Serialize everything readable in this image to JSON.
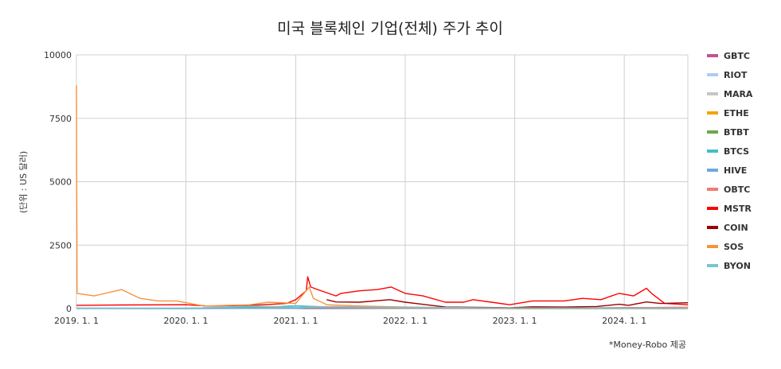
{
  "chart_data": {
    "type": "line",
    "title": "미국 블록체인 기업(전체) 주가 추이",
    "ylabel": "(단위 : US 달러)",
    "xlabel": "",
    "source": "*Money-Robo 제공",
    "x_range": [
      "2019-01-01",
      "2024-07-31"
    ],
    "ylim": [
      0,
      10000
    ],
    "y_ticks": [
      "0",
      "2500",
      "5000",
      "7500",
      "10000"
    ],
    "x_ticks": [
      {
        "date": "2019-01-01",
        "label": "2019. 1. 1"
      },
      {
        "date": "2020-01-01",
        "label": "2020. 1. 1"
      },
      {
        "date": "2021-01-01",
        "label": "2021. 1. 1"
      },
      {
        "date": "2022-01-01",
        "label": "2022. 1. 1"
      },
      {
        "date": "2023-01-01",
        "label": "2023. 1. 1"
      },
      {
        "date": "2024-01-01",
        "label": "2024. 1. 1"
      }
    ],
    "grid": true,
    "legend_position": "right",
    "series": [
      {
        "name": "GBTC",
        "color": "#c2538f",
        "points": [
          [
            "2019-01-01",
            5
          ],
          [
            "2020-01-01",
            9
          ],
          [
            "2021-01-01",
            35
          ],
          [
            "2021-02-15",
            50
          ],
          [
            "2022-01-01",
            30
          ],
          [
            "2023-01-01",
            8
          ],
          [
            "2024-01-01",
            38
          ],
          [
            "2024-07-31",
            50
          ]
        ]
      },
      {
        "name": "RIOT",
        "color": "#aecbf5",
        "points": [
          [
            "2019-01-01",
            2
          ],
          [
            "2020-01-01",
            1
          ],
          [
            "2021-01-01",
            18
          ],
          [
            "2021-02-15",
            70
          ],
          [
            "2022-01-01",
            20
          ],
          [
            "2023-01-01",
            4
          ],
          [
            "2024-01-01",
            15
          ],
          [
            "2024-07-31",
            9
          ]
        ]
      },
      {
        "name": "MARA",
        "color": "#c6c6c6",
        "points": [
          [
            "2019-01-01",
            4
          ],
          [
            "2020-01-01",
            1
          ],
          [
            "2021-01-01",
            12
          ],
          [
            "2021-02-15",
            50
          ],
          [
            "2022-01-01",
            35
          ],
          [
            "2023-01-01",
            4
          ],
          [
            "2024-01-01",
            24
          ],
          [
            "2024-07-31",
            20
          ]
        ]
      },
      {
        "name": "ETHE",
        "color": "#f4a300",
        "points": [
          [
            "2019-01-01",
            10
          ],
          [
            "2020-01-01",
            8
          ],
          [
            "2021-01-01",
            40
          ],
          [
            "2021-05-01",
            60
          ],
          [
            "2022-01-01",
            30
          ],
          [
            "2023-01-01",
            6
          ],
          [
            "2024-01-01",
            20
          ],
          [
            "2024-07-31",
            25
          ]
        ]
      },
      {
        "name": "BTBT",
        "color": "#6aa84f",
        "points": [
          [
            "2019-01-01",
            2
          ],
          [
            "2020-01-01",
            1
          ],
          [
            "2021-01-01",
            10
          ],
          [
            "2021-02-15",
            30
          ],
          [
            "2022-01-01",
            6
          ],
          [
            "2023-01-01",
            1
          ],
          [
            "2024-01-01",
            3
          ],
          [
            "2024-07-31",
            3
          ]
        ]
      },
      {
        "name": "BTCS",
        "color": "#46bdc6",
        "points": [
          [
            "2019-01-01",
            20
          ],
          [
            "2020-01-01",
            15
          ],
          [
            "2020-11-01",
            80
          ],
          [
            "2021-01-01",
            110
          ],
          [
            "2021-05-01",
            60
          ],
          [
            "2022-01-01",
            20
          ],
          [
            "2023-01-01",
            3
          ],
          [
            "2024-01-01",
            3
          ],
          [
            "2024-07-31",
            2
          ]
        ]
      },
      {
        "name": "HIVE",
        "color": "#6fa8dc",
        "points": [
          [
            "2019-01-01",
            5
          ],
          [
            "2020-01-01",
            3
          ],
          [
            "2021-01-01",
            15
          ],
          [
            "2021-02-15",
            20
          ],
          [
            "2022-01-01",
            12
          ],
          [
            "2023-01-01",
            3
          ],
          [
            "2024-01-01",
            4
          ],
          [
            "2024-07-31",
            4
          ]
        ]
      },
      {
        "name": "OBTC",
        "color": "#f07b72",
        "points": [
          [
            "2021-02-01",
            40
          ],
          [
            "2021-05-01",
            40
          ],
          [
            "2022-01-01",
            30
          ],
          [
            "2023-01-01",
            10
          ],
          [
            "2024-01-01",
            35
          ],
          [
            "2024-07-31",
            50
          ]
        ]
      },
      {
        "name": "MSTR",
        "color": "#ff0000",
        "points": [
          [
            "2019-01-01",
            130
          ],
          [
            "2019-06-01",
            140
          ],
          [
            "2020-01-01",
            150
          ],
          [
            "2020-03-15",
            100
          ],
          [
            "2020-08-01",
            130
          ],
          [
            "2020-10-15",
            170
          ],
          [
            "2020-12-01",
            200
          ],
          [
            "2021-01-01",
            350
          ],
          [
            "2021-02-05",
            700
          ],
          [
            "2021-02-10",
            1250
          ],
          [
            "2021-02-20",
            850
          ],
          [
            "2021-03-15",
            750
          ],
          [
            "2021-05-15",
            500
          ],
          [
            "2021-06-01",
            600
          ],
          [
            "2021-08-01",
            700
          ],
          [
            "2021-10-01",
            750
          ],
          [
            "2021-11-15",
            850
          ],
          [
            "2022-01-01",
            600
          ],
          [
            "2022-03-01",
            500
          ],
          [
            "2022-05-15",
            250
          ],
          [
            "2022-07-15",
            250
          ],
          [
            "2022-08-15",
            350
          ],
          [
            "2022-10-15",
            250
          ],
          [
            "2022-12-15",
            150
          ],
          [
            "2023-03-01",
            300
          ],
          [
            "2023-06-15",
            300
          ],
          [
            "2023-08-15",
            400
          ],
          [
            "2023-10-15",
            350
          ],
          [
            "2023-12-15",
            600
          ],
          [
            "2024-02-01",
            500
          ],
          [
            "2024-03-15",
            800
          ],
          [
            "2024-04-01",
            600
          ],
          [
            "2024-05-15",
            200
          ],
          [
            "2024-07-31",
            150
          ]
        ]
      },
      {
        "name": "COIN",
        "color": "#990000",
        "points": [
          [
            "2021-04-14",
            350
          ],
          [
            "2021-05-15",
            260
          ],
          [
            "2021-08-01",
            250
          ],
          [
            "2021-11-10",
            350
          ],
          [
            "2022-01-01",
            250
          ],
          [
            "2022-05-15",
            60
          ],
          [
            "2022-12-15",
            35
          ],
          [
            "2023-03-01",
            70
          ],
          [
            "2023-06-15",
            60
          ],
          [
            "2023-10-01",
            80
          ],
          [
            "2023-12-15",
            170
          ],
          [
            "2024-01-15",
            130
          ],
          [
            "2024-03-15",
            260
          ],
          [
            "2024-05-01",
            200
          ],
          [
            "2024-07-31",
            230
          ]
        ]
      },
      {
        "name": "SOS",
        "color": "#f6933b",
        "points": [
          [
            "2019-01-01",
            8800
          ],
          [
            "2019-01-03",
            600
          ],
          [
            "2019-03-01",
            500
          ],
          [
            "2019-06-01",
            750
          ],
          [
            "2019-08-01",
            400
          ],
          [
            "2019-10-01",
            300
          ],
          [
            "2019-12-01",
            300
          ],
          [
            "2020-03-01",
            100
          ],
          [
            "2020-08-01",
            150
          ],
          [
            "2020-10-01",
            250
          ],
          [
            "2021-01-01",
            200
          ],
          [
            "2021-02-15",
            850
          ],
          [
            "2021-03-01",
            400
          ],
          [
            "2021-04-15",
            150
          ],
          [
            "2021-08-01",
            100
          ],
          [
            "2022-01-01",
            60
          ],
          [
            "2023-01-01",
            5
          ],
          [
            "2024-01-01",
            5
          ],
          [
            "2024-07-31",
            3
          ]
        ]
      },
      {
        "name": "BYON",
        "color": "#76c5d6",
        "points": [
          [
            "2019-01-01",
            20
          ],
          [
            "2020-01-01",
            6
          ],
          [
            "2020-08-15",
            100
          ],
          [
            "2021-01-01",
            50
          ],
          [
            "2021-05-01",
            80
          ],
          [
            "2022-01-01",
            50
          ],
          [
            "2023-01-01",
            25
          ],
          [
            "2024-01-01",
            20
          ],
          [
            "2024-07-31",
            20
          ]
        ]
      }
    ]
  }
}
